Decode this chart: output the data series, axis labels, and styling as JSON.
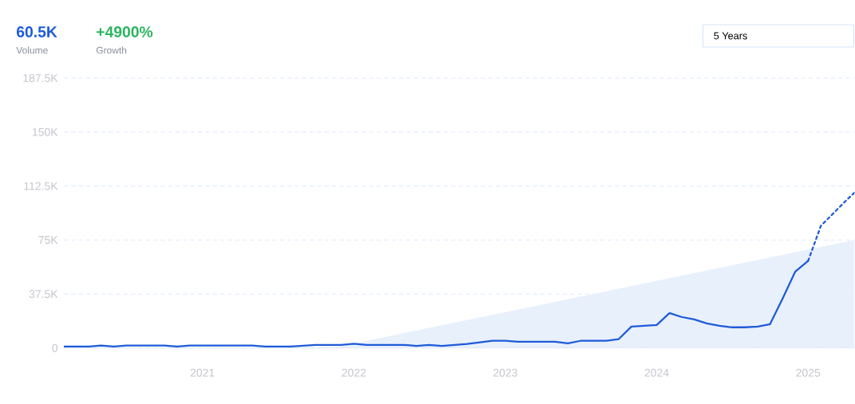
{
  "chart_data": {
    "type": "line",
    "xlim": [
      "2020-02-01",
      "2025-04-23"
    ],
    "ylim": [
      0,
      187500
    ],
    "xticks": [
      "2021",
      "2022",
      "2023",
      "2024",
      "2025"
    ],
    "yticks": [
      0,
      {
        "value": 37500,
        "label": "37.5K"
      },
      {
        "value": 75000,
        "label": "75K"
      },
      {
        "value": 112500,
        "label": "112.5K"
      },
      {
        "value": 150000,
        "label": "150K"
      },
      {
        "value": 187500,
        "label": "187.5K"
      }
    ],
    "grid": "y",
    "marker": "none",
    "annotations": [
      "60.5K",
      "Volume",
      "+4900%",
      "Growth",
      "5 Years"
    ],
    "series": [
      {
        "type": "area",
        "color": "#e8f0fc",
        "x": [
          "2021-11-08",
          "2025-04-23"
        ],
        "values": [
          0,
          75000
        ]
      },
      {
        "color": "#1e5bd8",
        "line_style": "solid",
        "x": [
          "2020-02",
          "2020-03",
          "2020-04",
          "2020-05",
          "2020-06",
          "2020-07",
          "2020-08",
          "2020-09",
          "2020-10",
          "2020-11",
          "2020-12",
          "2021-01",
          "2021-02",
          "2021-03",
          "2021-04",
          "2021-05",
          "2021-06",
          "2021-07",
          "2021-08",
          "2021-09",
          "2021-10",
          "2021-11",
          "2021-12",
          "2022-01",
          "2022-02",
          "2022-03",
          "2022-04",
          "2022-05",
          "2022-06",
          "2022-07",
          "2022-08",
          "2022-09",
          "2022-10",
          "2022-11",
          "2022-12",
          "2023-01",
          "2023-02",
          "2023-03",
          "2023-04",
          "2023-05",
          "2023-06",
          "2023-07",
          "2023-08",
          "2023-09",
          "2023-10",
          "2023-11",
          "2023-12",
          "2024-01",
          "2024-02",
          "2024-03",
          "2024-04",
          "2024-05",
          "2024-06",
          "2024-07",
          "2024-08",
          "2024-09",
          "2024-10",
          "2024-11",
          "2024-12",
          "2025-01"
        ],
        "values": [
          1000,
          1000,
          1000,
          1700,
          1000,
          1800,
          1800,
          1800,
          1800,
          1000,
          1800,
          1800,
          1800,
          1800,
          1800,
          1800,
          1000,
          1000,
          1000,
          1600,
          2200,
          2200,
          2200,
          3000,
          2200,
          2200,
          2200,
          2200,
          1500,
          2200,
          1500,
          2200,
          2800,
          4000,
          5000,
          5000,
          4400,
          4400,
          4400,
          4400,
          3300,
          5000,
          5000,
          5000,
          6100,
          14900,
          15500,
          16000,
          24300,
          21600,
          19900,
          17100,
          15500,
          14400,
          14400,
          14900,
          16600,
          34800,
          53100,
          60500
        ]
      },
      {
        "color": "#1e5bd8",
        "line_style": "dotted",
        "x": [
          "2025-01",
          "2025-02",
          "2025-03",
          "2025-04",
          "2025-04-23"
        ],
        "values": [
          60500,
          85000,
          93000,
          102000,
          108000
        ]
      }
    ]
  }
}
